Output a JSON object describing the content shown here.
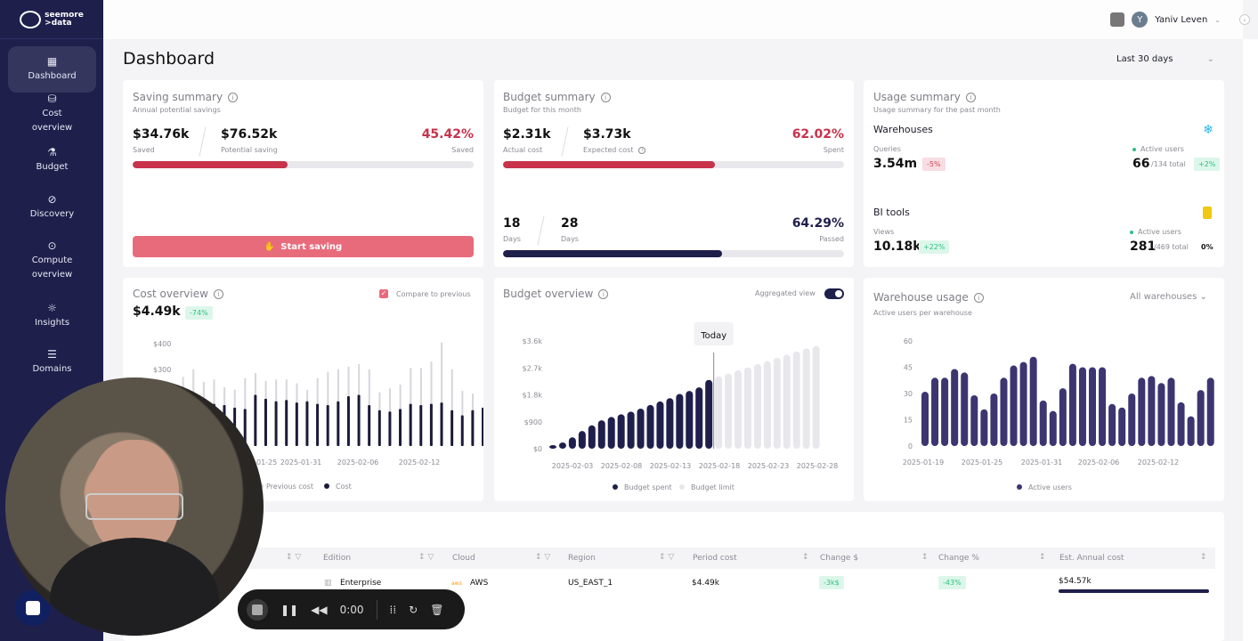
{
  "app": {
    "logo_line1": "seemore",
    "logo_line2": ">data"
  },
  "sidebar": {
    "items": [
      {
        "label": "Dashboard",
        "icon": "dashboard-icon",
        "glyph": "▦",
        "active": true
      },
      {
        "label": "Cost overview",
        "icon": "coins-icon",
        "glyph": "⛁"
      },
      {
        "label": "Budget",
        "icon": "flask-icon",
        "glyph": "⚗"
      },
      {
        "label": "Discovery",
        "icon": "compass-icon",
        "glyph": "⊘"
      },
      {
        "label": "Compute overview",
        "icon": "chip-icon",
        "glyph": "⊙"
      },
      {
        "label": "Insights",
        "icon": "lightbulb-icon",
        "glyph": "☼"
      },
      {
        "label": "Domains",
        "icon": "domains-icon",
        "glyph": "☰"
      }
    ]
  },
  "topbar": {
    "user_name": "Yaniv Leven",
    "avatar_initial": "Y"
  },
  "page": {
    "title": "Dashboard",
    "date_range": "Last 30 days"
  },
  "saving_summary": {
    "title": "Saving summary",
    "subtitle": "Annual potential savings",
    "saved_value": "$34.76k",
    "saved_label": "Saved",
    "potential_value": "$76.52k",
    "potential_label": "Potential saving",
    "percent": "45.42%",
    "percent_label": "Saved",
    "progress": 0.4542,
    "button_label": "Start saving"
  },
  "budget_summary": {
    "title": "Budget summary",
    "subtitle": "Budget for this month",
    "actual_value": "$2.31k",
    "actual_label": "Actual cost",
    "expected_value": "$3.73k",
    "expected_label": "Expected cost",
    "spent_percent": "62.02%",
    "spent_label": "Spent",
    "spent_progress": 0.6202,
    "days_elapsed": "18",
    "days_elapsed_label": "Days",
    "days_total": "28",
    "days_total_label": "Days",
    "passed_percent": "64.29%",
    "passed_label": "Passed",
    "passed_progress": 0.6429
  },
  "usage_summary": {
    "title": "Usage summary",
    "subtitle": "Usage summary for the past month",
    "warehouses": {
      "title": "Warehouses",
      "metric_label": "Queries",
      "metric_value": "3.54m",
      "metric_change": "-5%",
      "active_label": "Active users",
      "active_value": "66",
      "active_total": "/134 total",
      "active_change": "+2%"
    },
    "bi_tools": {
      "title": "BI tools",
      "metric_label": "Views",
      "metric_value": "10.18k",
      "metric_change": "+22%",
      "active_label": "Active users",
      "active_value": "281",
      "active_total": "/469 total",
      "active_change": "0%"
    }
  },
  "cost_overview": {
    "title": "Cost overview",
    "total": "$4.49k",
    "change": "-74%",
    "compare_label": "Compare to previous"
  },
  "budget_overview": {
    "title": "Budget overview",
    "toggle_label": "Aggregated view",
    "today_label": "Today"
  },
  "warehouse_usage": {
    "title": "Warehouse usage",
    "subtitle": "Active users per warehouse",
    "filter": "All warehouses"
  },
  "table": {
    "columns": [
      "Edition",
      "Cloud",
      "Region",
      "Period cost",
      "Change $",
      "Change %",
      "Est. Annual cost"
    ],
    "rows": [
      {
        "edition": "Enterprise",
        "cloud": "AWS",
        "region": "US_EAST_1",
        "period_cost": "$4.49k",
        "change_usd": "-3k$",
        "change_pct": "-43%",
        "annual_cost": "$54.57k",
        "annual_progress": 1.0
      }
    ]
  },
  "recorder": {
    "time": "0:00"
  },
  "colors": {
    "navy": "#1e1f4b",
    "red": "#c8324b",
    "pink": "#e86b7c",
    "green": "#2fbf83",
    "purple": "#3b3570",
    "gray_bar": "#e6e6ea"
  },
  "chart_data": [
    {
      "type": "bar",
      "title": "Cost overview",
      "x_ticks": [
        "2025-01-25",
        "2025-01-31",
        "2025-02-06",
        "2025-02-12"
      ],
      "y_ticks": [
        "$400",
        "$300"
      ],
      "ylim": [
        0,
        400
      ],
      "series": [
        {
          "name": "Previous cost",
          "color": "#d6d6dc",
          "values": [
            240,
            270,
            300,
            250,
            260,
            230,
            220,
            265,
            285,
            255,
            260,
            260,
            245,
            220,
            265,
            290,
            300,
            310,
            320,
            300,
            210,
            225,
            240,
            305,
            305,
            330,
            405,
            300,
            215,
            205
          ]
        },
        {
          "name": "Cost",
          "color": "#1a1a3a",
          "values": [
            170,
            160,
            180,
            165,
            160,
            150,
            145,
            200,
            185,
            175,
            180,
            170,
            175,
            165,
            160,
            175,
            195,
            200,
            160,
            140,
            135,
            145,
            165,
            160,
            165,
            170,
            140,
            120,
            140,
            150
          ]
        }
      ]
    },
    {
      "type": "bar",
      "title": "Budget overview",
      "x_ticks": [
        "2025-02-03",
        "2025-02-08",
        "2025-02-13",
        "2025-02-18",
        "2025-02-23",
        "2025-02-28"
      ],
      "y_ticks": [
        "$3.6k",
        "$2.7k",
        "$1.8k",
        "$900",
        "$0"
      ],
      "ylim": [
        0,
        3600
      ],
      "today_index": 17,
      "series": [
        {
          "name": "Budget spent",
          "color": "#1e1f4b",
          "values": [
            80,
            210,
            380,
            590,
            780,
            950,
            1060,
            1150,
            1240,
            1340,
            1460,
            1580,
            1690,
            1830,
            1930,
            2050,
            2300
          ]
        },
        {
          "name": "Budget limit",
          "color": "#e8e8ec",
          "values": [
            2420,
            2510,
            2620,
            2720,
            2830,
            2930,
            3040,
            3140,
            3250,
            3350,
            3430
          ]
        }
      ]
    },
    {
      "type": "bar",
      "title": "Warehouse usage",
      "subtitle": "Active users per warehouse",
      "x_ticks": [
        "2025-01-19",
        "2025-01-25",
        "2025-01-31",
        "2025-02-06",
        "2025-02-12"
      ],
      "y_ticks": [
        "60",
        "45",
        "30",
        "15",
        "0"
      ],
      "ylim": [
        0,
        60
      ],
      "series": [
        {
          "name": "Active users",
          "color": "#3b3570",
          "values": [
            31,
            39,
            39,
            44,
            42,
            29,
            21,
            30,
            39,
            46,
            48,
            51,
            26,
            20,
            33,
            47,
            45,
            45,
            45,
            24,
            22,
            30,
            39,
            40,
            36,
            39,
            25,
            17,
            32,
            39
          ]
        }
      ]
    }
  ]
}
